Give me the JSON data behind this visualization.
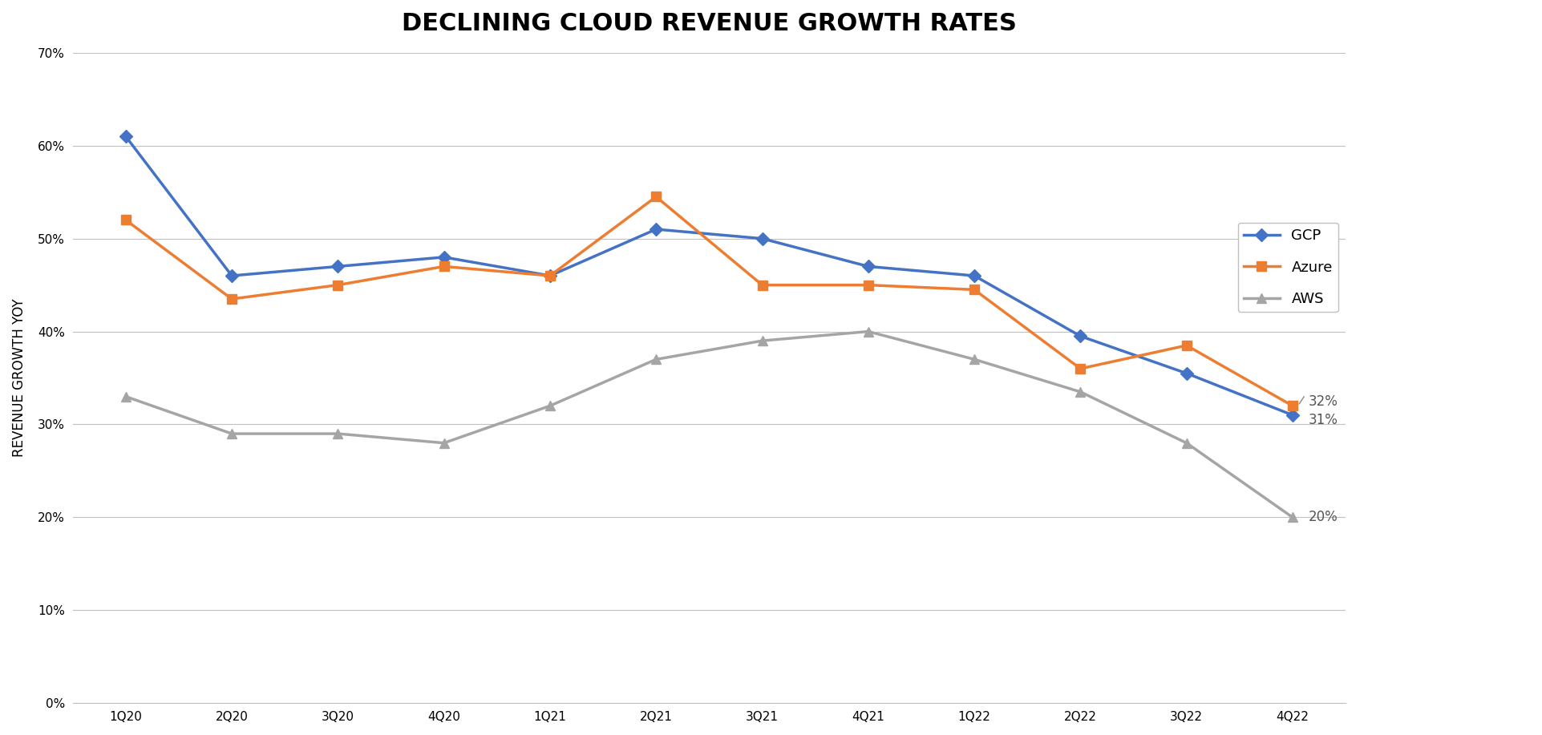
{
  "title": "DECLINING CLOUD REVENUE GROWTH RATES",
  "xlabel": "",
  "ylabel": "REVENUE GROWTH YOY",
  "categories": [
    "1Q20",
    "2Q20",
    "3Q20",
    "4Q20",
    "1Q21",
    "2Q21",
    "3Q21",
    "4Q21",
    "1Q22",
    "2Q22",
    "3Q22",
    "4Q22"
  ],
  "GCP": [
    0.61,
    0.46,
    0.47,
    0.48,
    0.46,
    0.51,
    0.5,
    0.47,
    0.46,
    0.395,
    0.355,
    0.31
  ],
  "Azure": [
    0.52,
    0.435,
    0.45,
    0.47,
    0.46,
    0.545,
    0.45,
    0.45,
    0.445,
    0.36,
    0.385,
    0.32
  ],
  "AWS": [
    0.33,
    0.29,
    0.29,
    0.28,
    0.32,
    0.37,
    0.39,
    0.4,
    0.37,
    0.335,
    0.28,
    0.2
  ],
  "GCP_color": "#4472C4",
  "Azure_color": "#ED7D31",
  "AWS_color": "#A5A5A5",
  "background_color": "#FFFFFF",
  "ylim": [
    0,
    0.7
  ],
  "yticks": [
    0,
    0.1,
    0.2,
    0.3,
    0.4,
    0.5,
    0.6,
    0.7
  ],
  "title_fontsize": 22,
  "axis_label_fontsize": 12,
  "tick_fontsize": 11,
  "annotation_32": "32%",
  "annotation_31": "31%",
  "annotation_20": "20%"
}
